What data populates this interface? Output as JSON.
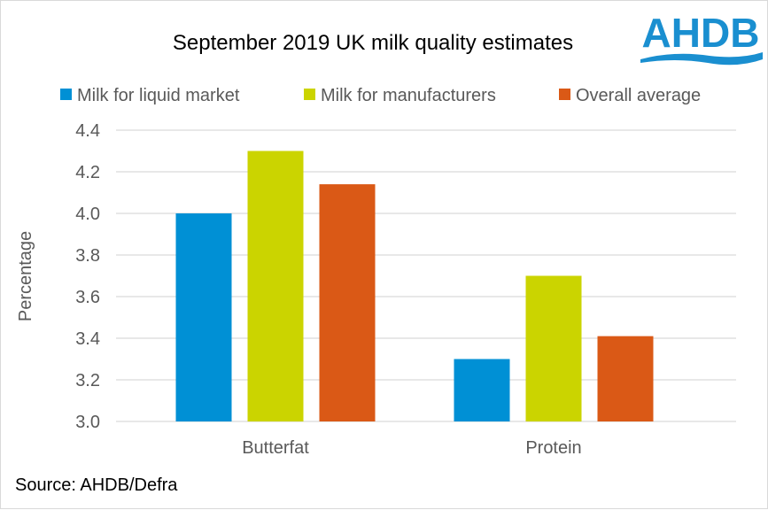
{
  "logo_text": "AHDB",
  "source": "Source: AHDB/Defra",
  "chart_data": {
    "type": "bar",
    "title": "September 2019 UK milk quality estimates",
    "xlabel": "",
    "ylabel": "Percentage",
    "ylim": [
      3.0,
      4.4
    ],
    "yticks": [
      "3.0",
      "3.2",
      "3.4",
      "3.6",
      "3.8",
      "4.0",
      "4.2",
      "4.4"
    ],
    "grid": true,
    "legend_position": "top",
    "categories": [
      "Butterfat",
      "Protein"
    ],
    "series": [
      {
        "name": "Milk for liquid market",
        "color": "#0090d5",
        "values": [
          4.0,
          3.3
        ]
      },
      {
        "name": "Milk for manufacturers",
        "color": "#cbd400",
        "values": [
          4.3,
          3.7
        ]
      },
      {
        "name": "Overall average",
        "color": "#da5916",
        "values": [
          4.14,
          3.41
        ]
      }
    ]
  }
}
